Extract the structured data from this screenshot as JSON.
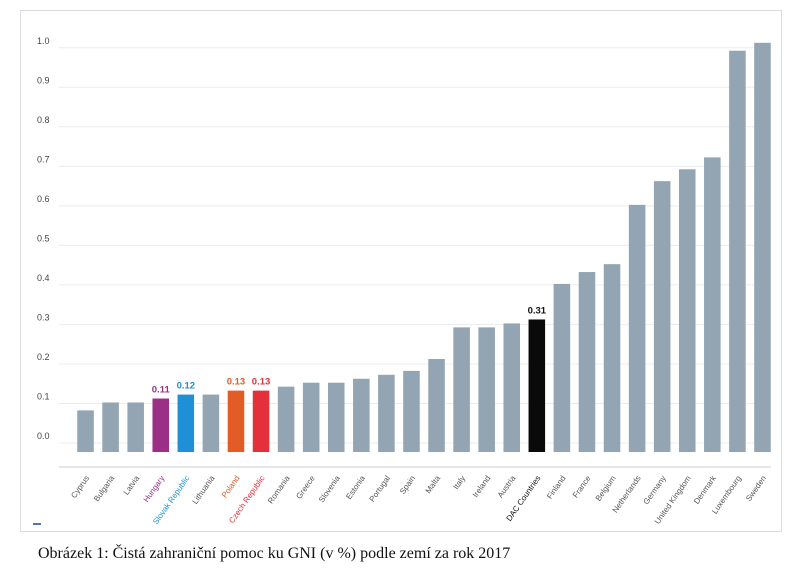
{
  "caption": "Obrázek 1: Čistá zahraniční pomoc ku GNI (v %) podle zemí za rok 2017",
  "chart_data": {
    "type": "bar",
    "title": "",
    "xlabel": "",
    "ylabel": "",
    "ylim": [
      0,
      1.05
    ],
    "yticks": [
      "0.0",
      "0.1",
      "0.2",
      "0.3",
      "0.4",
      "0.5",
      "0.6",
      "0.7",
      "0.8",
      "0.9",
      "1.0"
    ],
    "grid": true,
    "categories": [
      "Cyprus",
      "Bulgaria",
      "Latvia",
      "Hungary",
      "Slovak Republic",
      "Lithuania",
      "Poland",
      "Czech Republic",
      "Romania",
      "Greece",
      "Slovenia",
      "Estonia",
      "Portugal",
      "Spain",
      "Malta",
      "Italy",
      "Ireland",
      "Austria",
      "DAC Countries",
      "Finland",
      "France",
      "Belgium",
      "Netherlands",
      "Germany",
      "United Kingdom",
      "Denmark",
      "Luxembourg",
      "Sweden"
    ],
    "values": [
      0.08,
      0.1,
      0.1,
      0.11,
      0.12,
      0.12,
      0.13,
      0.13,
      0.14,
      0.15,
      0.15,
      0.16,
      0.17,
      0.18,
      0.21,
      0.29,
      0.29,
      0.3,
      0.31,
      0.4,
      0.43,
      0.45,
      0.6,
      0.66,
      0.69,
      0.72,
      0.99,
      1.01
    ],
    "bar_colors": [
      "#93a5b2",
      "#93a5b2",
      "#93a5b2",
      "#9b2f86",
      "#1f8fd6",
      "#93a5b2",
      "#e35b25",
      "#e3303a",
      "#93a5b2",
      "#93a5b2",
      "#93a5b2",
      "#93a5b2",
      "#93a5b2",
      "#93a5b2",
      "#93a5b2",
      "#93a5b2",
      "#93a5b2",
      "#93a5b2",
      "#0a0a0a",
      "#93a5b2",
      "#93a5b2",
      "#93a5b2",
      "#93a5b2",
      "#93a5b2",
      "#93a5b2",
      "#93a5b2",
      "#93a5b2",
      "#93a5b2"
    ],
    "label_colors": [
      "#555555",
      "#555555",
      "#555555",
      "#9b2f86",
      "#1f8fd6",
      "#555555",
      "#e35b25",
      "#e3303a",
      "#555555",
      "#555555",
      "#555555",
      "#555555",
      "#555555",
      "#555555",
      "#555555",
      "#555555",
      "#555555",
      "#555555",
      "#111111",
      "#555555",
      "#555555",
      "#555555",
      "#555555",
      "#555555",
      "#555555",
      "#555555",
      "#555555",
      "#555555"
    ],
    "data_labels": [
      {
        "category": "Hungary",
        "text": "0.11"
      },
      {
        "category": "Slovak Republic",
        "text": "0.12"
      },
      {
        "category": "Poland",
        "text": "0.13"
      },
      {
        "category": "Czech Republic",
        "text": "0.13"
      },
      {
        "category": "DAC Countries",
        "text": "0.31"
      }
    ]
  }
}
